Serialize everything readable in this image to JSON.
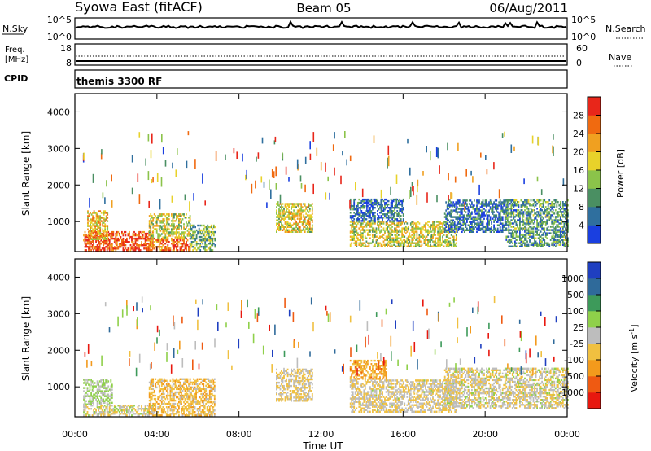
{
  "header": {
    "station": "Syowa East (fitACF)",
    "beam": "Beam 05",
    "date": "06/Aug/2011"
  },
  "panels": {
    "nsky": {
      "label": "N.Sky",
      "ticks": [
        "10^5",
        "10^0"
      ],
      "right_label": "N.Search",
      "right_ticks": [
        "10^5",
        "10^0"
      ]
    },
    "freq": {
      "label_line1": "Freq.",
      "label_line2": "[MHz]",
      "ticks": [
        "18",
        "8"
      ],
      "right_label": "Nave",
      "right_ticks": [
        "60",
        "0"
      ]
    },
    "cpid": {
      "label": "CPID",
      "text": "themis 3300 RF"
    }
  },
  "colors": {
    "power_scale": [
      "#1a3fe0",
      "#2f6f9e",
      "#4a8f62",
      "#8bc34a",
      "#e8d22a",
      "#f0a020",
      "#f06a10",
      "#e8261a"
    ],
    "velocity_scale": [
      "#e8180f",
      "#ef5a12",
      "#f39a1c",
      "#f0c040",
      "#bdbdbd",
      "#8fd04a",
      "#3d9a5a",
      "#2f6a9a",
      "#1f3fc0"
    ]
  },
  "chart_data": [
    {
      "type": "heatmap",
      "title": "",
      "xlabel": "",
      "ylabel": "Slant Range [km]",
      "xlim": [
        0,
        24
      ],
      "ylim": [
        180,
        4500
      ],
      "xticks": [
        "00:00",
        "04:00",
        "08:00",
        "12:00",
        "16:00",
        "20:00",
        "00:00"
      ],
      "yticks": [
        1000,
        2000,
        3000,
        4000
      ],
      "colorbar": {
        "label": "Power [dB]",
        "ticks": [
          "4",
          "8",
          "12",
          "16",
          "20",
          "24",
          "28"
        ],
        "range": [
          0,
          32
        ]
      },
      "regions": [
        {
          "t": [
            0.4,
            3.8
          ],
          "r": [
            200,
            700
          ],
          "value": 28
        },
        {
          "t": [
            0.6,
            1.6
          ],
          "r": [
            500,
            1300
          ],
          "value": 20
        },
        {
          "t": [
            3.6,
            5.6
          ],
          "r": [
            200,
            550
          ],
          "value": 26
        },
        {
          "t": [
            3.6,
            5.6
          ],
          "r": [
            550,
            1200
          ],
          "value": 17
        },
        {
          "t": [
            5.6,
            6.8
          ],
          "r": [
            200,
            900
          ],
          "value": 12
        },
        {
          "t": [
            9.8,
            11.6
          ],
          "r": [
            700,
            1500
          ],
          "value": 18
        },
        {
          "t": [
            13.4,
            18.6
          ],
          "r": [
            300,
            1000
          ],
          "value": 17
        },
        {
          "t": [
            13.4,
            16.0
          ],
          "r": [
            1000,
            1600
          ],
          "value": 6
        },
        {
          "t": [
            18.0,
            21.0
          ],
          "r": [
            700,
            1600
          ],
          "value": 6
        },
        {
          "t": [
            21.0,
            24.0
          ],
          "r": [
            300,
            1600
          ],
          "value": 10
        }
      ]
    },
    {
      "type": "heatmap",
      "title": "",
      "xlabel": "Time UT",
      "ylabel": "Slant Range [km]",
      "xlim": [
        0,
        24
      ],
      "ylim": [
        180,
        4500
      ],
      "xticks": [
        "00:00",
        "04:00",
        "08:00",
        "12:00",
        "16:00",
        "20:00",
        "00:00"
      ],
      "yticks": [
        1000,
        2000,
        3000,
        4000
      ],
      "colorbar": {
        "label": "Velocity [m s^-1]",
        "ticks": [
          "1000",
          "500",
          "100",
          "25",
          "-25",
          "-100",
          "-500",
          "-1000"
        ],
        "range": [
          -1200,
          1200
        ]
      },
      "regions": [
        {
          "t": [
            0.4,
            3.8
          ],
          "r": [
            200,
            500
          ],
          "value": -40
        },
        {
          "t": [
            0.4,
            1.8
          ],
          "r": [
            500,
            1200
          ],
          "value": 150
        },
        {
          "t": [
            3.6,
            6.8
          ],
          "r": [
            200,
            1200
          ],
          "value": -300
        },
        {
          "t": [
            9.8,
            11.6
          ],
          "r": [
            600,
            1500
          ],
          "value": -150
        },
        {
          "t": [
            13.4,
            15.2
          ],
          "r": [
            1200,
            1700
          ],
          "value": -450
        },
        {
          "t": [
            13.4,
            18.6
          ],
          "r": [
            300,
            1200
          ],
          "value": -100
        },
        {
          "t": [
            18.0,
            24.0
          ],
          "r": [
            400,
            1500
          ],
          "value": -60
        }
      ]
    }
  ]
}
